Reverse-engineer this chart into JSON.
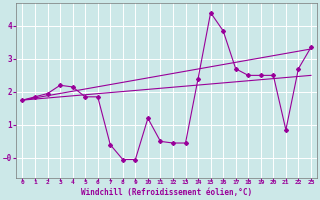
{
  "x": [
    0,
    1,
    2,
    3,
    4,
    5,
    6,
    7,
    8,
    9,
    10,
    11,
    12,
    13,
    14,
    15,
    16,
    17,
    18,
    19,
    20,
    21,
    22,
    23
  ],
  "y_main": [
    1.75,
    1.85,
    1.95,
    2.2,
    2.15,
    1.85,
    1.85,
    0.4,
    -0.05,
    -0.05,
    1.2,
    0.5,
    0.45,
    0.45,
    2.4,
    4.4,
    3.85,
    2.7,
    2.5,
    2.5,
    2.5,
    0.85,
    2.7,
    3.35
  ],
  "trend1_x": [
    0,
    23
  ],
  "trend1_y": [
    1.75,
    2.5
  ],
  "trend2_x": [
    0,
    23
  ],
  "trend2_y": [
    1.75,
    3.3
  ],
  "line_color": "#990099",
  "bg_color": "#cce8e8",
  "grid_color": "#ffffff",
  "xlabel": "Windchill (Refroidissement éolien,°C)",
  "ytick_labels": [
    "",
    "-0",
    "",
    "1",
    "",
    "2",
    "",
    "3",
    "",
    "4"
  ],
  "yticks": [
    -0.5,
    -0.0,
    0.5,
    1.0,
    1.5,
    2.0,
    2.5,
    3.0,
    3.5,
    4.0
  ],
  "xtick_labels": [
    "0",
    "1",
    "2",
    "3",
    "4",
    "5",
    "6",
    "7",
    "8",
    "9",
    "10",
    "11",
    "12",
    "13",
    "14",
    "15",
    "16",
    "17",
    "18",
    "19",
    "20",
    "21",
    "22",
    "23"
  ],
  "ylim": [
    -0.6,
    4.7
  ],
  "xlim": [
    -0.5,
    23.5
  ],
  "ylabel_ticks": [
    0,
    1,
    2,
    3,
    4
  ],
  "neg_zero_y": -0.0
}
